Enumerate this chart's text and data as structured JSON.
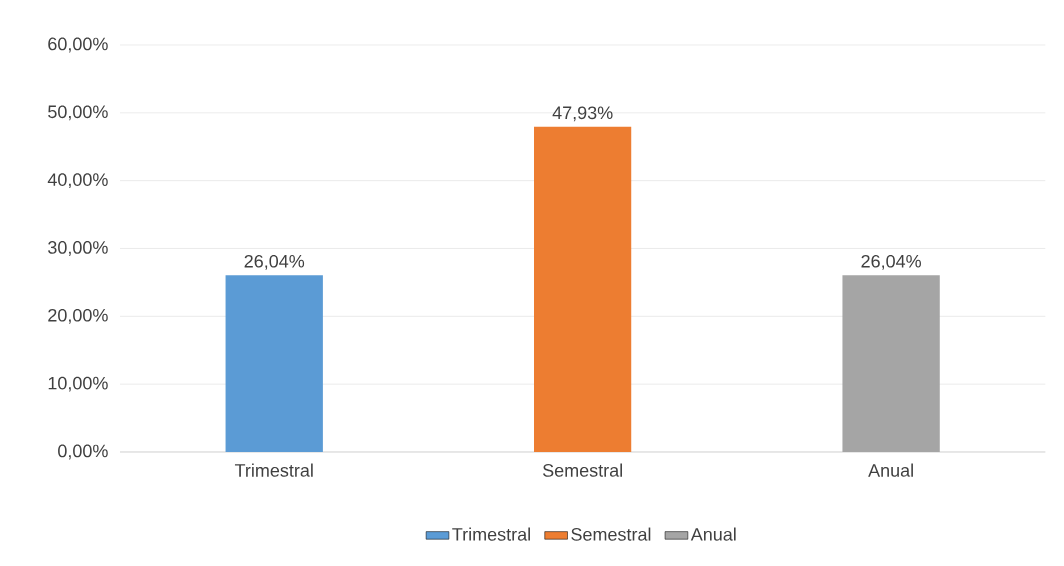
{
  "chart_data": {
    "type": "bar",
    "categories": [
      "Trimestral",
      "Semestral",
      "Anual"
    ],
    "series": [
      {
        "name": "Trimestral",
        "color": "#5b9bd5",
        "values": [
          26.04,
          null,
          null
        ],
        "value_labels": [
          "26,04%",
          null,
          null
        ]
      },
      {
        "name": "Semestral",
        "color": "#ed7d31",
        "values": [
          null,
          47.93,
          null
        ],
        "value_labels": [
          null,
          "47,93%",
          null
        ]
      },
      {
        "name": "Anual",
        "color": "#a5a5a5",
        "values": [
          null,
          null,
          26.04
        ],
        "value_labels": [
          null,
          null,
          "26,04%"
        ]
      }
    ],
    "ylim": [
      0,
      60
    ],
    "yticks": [
      {
        "value": 0,
        "label": "0,00%"
      },
      {
        "value": 10,
        "label": "10,00%"
      },
      {
        "value": 20,
        "label": "20,00%"
      },
      {
        "value": 30,
        "label": "30,00%"
      },
      {
        "value": 40,
        "label": "40,00%"
      },
      {
        "value": 50,
        "label": "50,00%"
      },
      {
        "value": 60,
        "label": "60,00%"
      }
    ],
    "grid": "y",
    "legend": "bottom"
  }
}
